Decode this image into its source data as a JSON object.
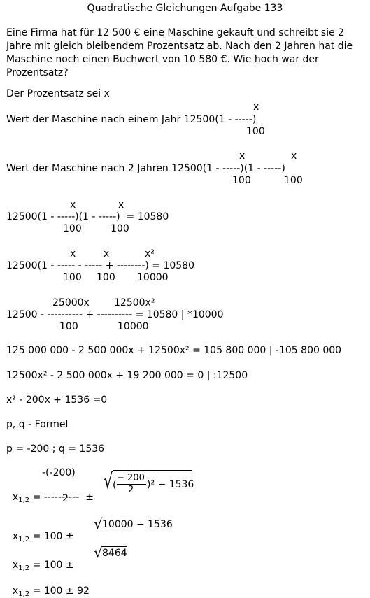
{
  "title": "Quadratische Gleichungen Aufgabe 133",
  "problem": "Eine Firma hat für 12 500 € eine Maschine gekauft und schreibt sie 2 Jahre mit gleich bleibendem Prozentsatz ab. Nach den 2 Jahren hat die Maschine noch einen Buchwert von 10 580 €. Wie hoch war der Prozentsatz?",
  "let": "Der Prozentsatz sei x",
  "line1": {
    "num": "x",
    "main": "Wert der Maschine nach einem Jahr 12500(1 - -----)",
    "den": "100"
  },
  "line2": {
    "num1": "x",
    "num2": "x",
    "main": "Wert der Maschine nach 2 Jahren 12500(1 - -----)(1 - -----)",
    "den1": "100",
    "den2": "100"
  },
  "line3": {
    "num1": "x",
    "num2": "x",
    "main": "12500(1 - -----)(1 - -----)  = 10580",
    "den1": "100",
    "den2": "100"
  },
  "line4": {
    "num1": "x",
    "num2": "x",
    "num3": "x²",
    "main": "12500(1 - ----- - ----- + --------) = 10580",
    "den1": "100",
    "den2": "100",
    "den3": "10000"
  },
  "line5": {
    "num1": "25000x",
    "num2": "12500x²",
    "main": "12500 - ---------- + ---------- = 10580 | *10000",
    "den1": "100",
    "den2": "10000"
  },
  "line6": "125 000 000 - 2 500 000x + 12500x² = 105 800 000 | -105 800 000",
  "line7": "12500x² - 2 500 000x + 19 200 000 = 0 | :12500",
  "line8": "x² - 200x + 1536 =0",
  "line9": "p, q - Formel",
  "line10": "p = -200 ; q = 1536",
  "formula": {
    "x": "x",
    "sub": "1,2",
    "eq": "=",
    "num": "-(-200)",
    "dash": "----------",
    "pm": "±",
    "den": "2",
    "sqrt_open": "(",
    "inner_num": "− 200",
    "inner_den": "2",
    "inner_tail": ")² − 1536"
  },
  "step1": {
    "x": "x",
    "sub": "1,2",
    "text": "= 100 ±",
    "radicand": "10000 − 1536"
  },
  "step2": {
    "x": "x",
    "sub": "1,2",
    "text": "= 100 ±",
    "radicand": "8464"
  },
  "step3": {
    "x": "x",
    "sub": "1,2",
    "text": "= 100 ± 92"
  }
}
